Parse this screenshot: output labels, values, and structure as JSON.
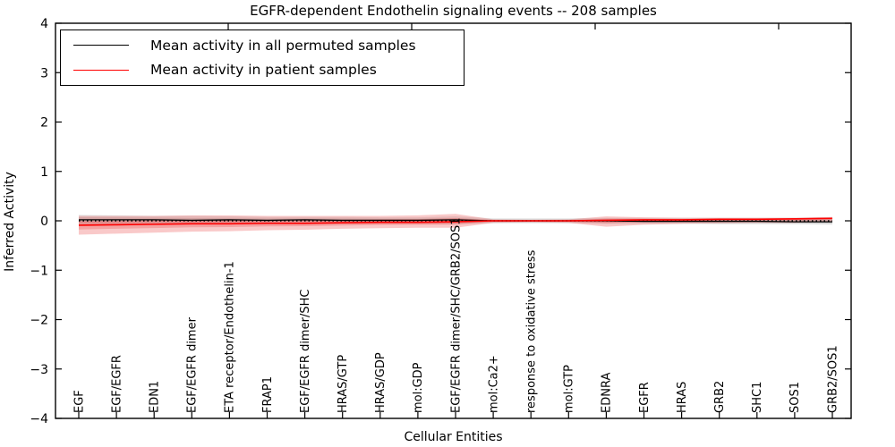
{
  "figure": {
    "title": "EGFR-dependent Endothelin signaling events -- 208 samples",
    "xlabel": "Cellular Entities",
    "ylabel": "Inferred Activity"
  },
  "legend": {
    "position": "upper-left",
    "items": [
      {
        "label": "Mean activity in all permuted samples",
        "color": "#000000"
      },
      {
        "label": "Mean activity in patient samples",
        "color": "#ff0000"
      }
    ]
  },
  "colors": {
    "patient_line": "#ff0000",
    "permuted_line": "#000000",
    "patient_band": "rgba(235,60,60,0.28)",
    "permuted_band": "rgba(0,0,0,0.11)",
    "frame": "#000000",
    "background": "#ffffff"
  },
  "chart_data": {
    "type": "line",
    "title": "EGFR-dependent Endothelin signaling events -- 208 samples",
    "xlabel": "Cellular Entities",
    "ylabel": "Inferred Activity",
    "ylim": [
      -4,
      4
    ],
    "yticks": [
      -4,
      -3,
      -2,
      -1,
      0,
      1,
      2,
      3,
      4
    ],
    "grid": false,
    "legend_position": "upper-left",
    "zero_line": {
      "y": 0,
      "style": "dotted",
      "color": "#000000"
    },
    "categories": [
      "EGF",
      "EGF/EGFR",
      "EDN1",
      "EGF/EGFR dimer",
      "ETA receptor/Endothelin-1",
      "FRAP1",
      "EGF/EGFR dimer/SHC",
      "HRAS/GTP",
      "HRAS/GDP",
      "mol:GDP",
      "EGF/EGFR dimer/SHC/GRB2/SOS1",
      "mol:Ca2+",
      "response to oxidative stress",
      "mol:GTP",
      "EDNRA",
      "EGFR",
      "HRAS",
      "GRB2",
      "SHC1",
      "SOS1",
      "GRB2/SOS1"
    ],
    "series": [
      {
        "name": "Mean activity in all permuted samples",
        "color": "#000000",
        "line_style": "solid",
        "values": [
          0.02,
          0.02,
          0.02,
          0.01,
          0.02,
          0.01,
          0.02,
          0.01,
          0.01,
          0.01,
          0.02,
          0.0,
          0.0,
          0.0,
          0.0,
          -0.01,
          -0.01,
          -0.01,
          -0.01,
          -0.02,
          -0.02
        ],
        "band_upper": [
          0.12,
          0.11,
          0.1,
          0.1,
          0.09,
          0.08,
          0.08,
          0.08,
          0.07,
          0.07,
          0.09,
          0.05,
          0.05,
          0.05,
          0.06,
          0.06,
          0.06,
          0.06,
          0.06,
          0.06,
          0.07
        ],
        "band_lower": [
          -0.09,
          -0.08,
          -0.08,
          -0.07,
          -0.07,
          -0.07,
          -0.06,
          -0.06,
          -0.06,
          -0.06,
          -0.07,
          -0.05,
          -0.05,
          -0.05,
          -0.06,
          -0.06,
          -0.06,
          -0.07,
          -0.07,
          -0.07,
          -0.08
        ]
      },
      {
        "name": "Mean activity in patient samples",
        "color": "#ff0000",
        "line_style": "solid",
        "values": [
          -0.09,
          -0.08,
          -0.07,
          -0.06,
          -0.06,
          -0.05,
          -0.05,
          -0.04,
          -0.03,
          -0.03,
          -0.02,
          0.0,
          0.0,
          0.0,
          0.01,
          0.02,
          0.02,
          0.03,
          0.03,
          0.04,
          0.05
        ],
        "band_upper": [
          0.1,
          0.1,
          0.1,
          0.11,
          0.11,
          0.1,
          0.1,
          0.1,
          0.1,
          0.11,
          0.14,
          0.03,
          0.02,
          0.03,
          0.09,
          0.07,
          0.06,
          0.06,
          0.06,
          0.06,
          0.08
        ],
        "band_lower": [
          -0.28,
          -0.26,
          -0.24,
          -0.22,
          -0.21,
          -0.19,
          -0.18,
          -0.16,
          -0.15,
          -0.14,
          -0.14,
          -0.04,
          -0.03,
          -0.04,
          -0.12,
          -0.08,
          -0.06,
          -0.05,
          -0.04,
          -0.04,
          -0.02
        ]
      }
    ]
  }
}
